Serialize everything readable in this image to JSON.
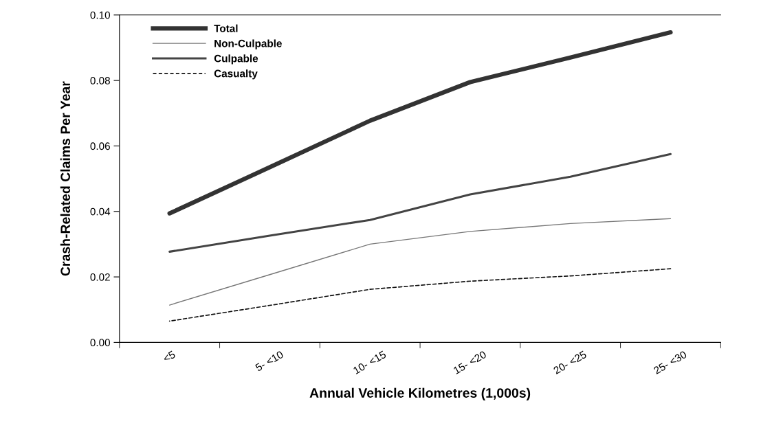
{
  "chart_data": {
    "type": "line",
    "xlabel": "Annual Vehicle Kilometres (1,000s)",
    "ylabel": "Crash-Related Claims Per Year",
    "categories": [
      "<5",
      "5- <10",
      "10- <15",
      "15- <20",
      "20- <25",
      "25- <30"
    ],
    "series": [
      {
        "name": "Total",
        "color": "#333333",
        "values": [
          0.0394,
          0.0535,
          0.0677,
          0.0795,
          0.087,
          0.0947
        ]
      },
      {
        "name": "Non-Culpable",
        "color": "#777777",
        "values": [
          0.0114,
          0.0207,
          0.03,
          0.0339,
          0.0363,
          0.0378
        ]
      },
      {
        "name": "Culpable",
        "color": "#444444",
        "values": [
          0.0277,
          0.0326,
          0.0374,
          0.0452,
          0.0506,
          0.0575
        ]
      },
      {
        "name": "Casualty",
        "color": "#111111",
        "line_style": "dashed",
        "values": [
          0.0065,
          0.0113,
          0.0162,
          0.0187,
          0.0203,
          0.0225
        ]
      }
    ],
    "ylim": [
      0,
      0.1
    ],
    "yticks": [
      {
        "value": 0,
        "label": "0.00"
      },
      {
        "value": 0.02,
        "label": "0.02"
      },
      {
        "value": 0.04,
        "label": "0.04"
      },
      {
        "value": 0.06,
        "label": "0.06"
      },
      {
        "value": 0.08,
        "label": "0.08"
      },
      {
        "value": 0.1,
        "label": "0.10"
      }
    ],
    "legend": "top left",
    "grid": false,
    "marker": "none"
  }
}
